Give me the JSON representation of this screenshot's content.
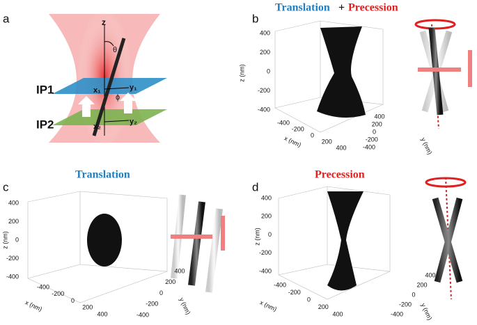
{
  "panel_a": {
    "label": "a",
    "z": "z",
    "theta": "θ",
    "plane1": "IP1",
    "plane2": "IP2",
    "x1": "x₁",
    "y1": "y₁",
    "phi": "ϕ",
    "x2": "x₂",
    "y2": "y₂"
  },
  "panel_b": {
    "label": "b",
    "title": [
      "Translation",
      "+",
      "Precession"
    ],
    "z_label": "z (nm)",
    "x_label": "x (nm)",
    "y_label": "y (nm)",
    "z_ticks": [
      400,
      200,
      0,
      -200,
      -400
    ],
    "x_ticks": [
      -400,
      -200,
      0,
      200,
      400
    ],
    "y_ticks": [
      400,
      200,
      0,
      -200,
      -400
    ]
  },
  "panel_c": {
    "label": "c",
    "title": "Translation",
    "z_label": "z (nm)",
    "x_label": "x (nm)",
    "y_label": "y (nm)",
    "z_ticks": [
      400,
      200,
      0,
      -200,
      -400
    ],
    "x_ticks": [
      -400,
      -200,
      0,
      200,
      400
    ],
    "y_ticks": [
      -400,
      -200,
      0,
      200,
      400
    ]
  },
  "panel_d": {
    "label": "d",
    "title": "Precession",
    "z_label": "z (nm)",
    "x_label": "x (nm)",
    "y_label": "y (nm)",
    "z_ticks": [
      400,
      200,
      0,
      -200,
      -400
    ],
    "x_ticks": [
      -400,
      -200,
      0,
      200,
      400
    ],
    "y_ticks": [
      400,
      200,
      0,
      -200,
      -400
    ]
  }
}
